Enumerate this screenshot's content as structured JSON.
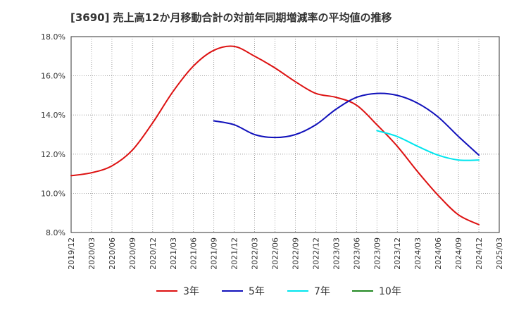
{
  "chart_data": {
    "type": "line",
    "title": "[3690]  売上高12か月移動合計の対前年同期増減率の平均値の推移",
    "xlabel": "",
    "ylabel": "",
    "ylim": [
      8.0,
      18.0
    ],
    "y_ticks": [
      "18.0%",
      "16.0%",
      "14.0%",
      "12.0%",
      "10.0%",
      "8.0%"
    ],
    "y_tick_values": [
      18,
      16,
      14,
      12,
      10,
      8
    ],
    "x_ticks": [
      "2019/12",
      "2020/03",
      "2020/06",
      "2020/09",
      "2020/12",
      "2021/03",
      "2021/06",
      "2021/09",
      "2021/12",
      "2022/03",
      "2022/06",
      "2022/09",
      "2022/12",
      "2023/03",
      "2023/06",
      "2023/09",
      "2023/12",
      "2024/03",
      "2024/06",
      "2024/09",
      "2024/12",
      "2025/03"
    ],
    "grid": true,
    "legend_position": "bottom",
    "series": [
      {
        "name": "3年",
        "color": "#dd1111",
        "x": [
          "2019/12",
          "2020/03",
          "2020/06",
          "2020/09",
          "2020/12",
          "2021/03",
          "2021/06",
          "2021/09",
          "2021/12",
          "2022/03",
          "2022/06",
          "2022/09",
          "2022/12",
          "2023/03",
          "2023/06",
          "2023/09",
          "2023/12",
          "2024/03",
          "2024/06",
          "2024/09",
          "2024/12"
        ],
        "values": [
          10.9,
          11.05,
          11.4,
          12.2,
          13.6,
          15.2,
          16.5,
          17.3,
          17.5,
          17.0,
          16.4,
          15.7,
          15.1,
          14.9,
          14.5,
          13.5,
          12.4,
          11.1,
          9.9,
          8.9,
          8.4
        ]
      },
      {
        "name": "5年",
        "color": "#1111bb",
        "x": [
          "2021/09",
          "2021/12",
          "2022/03",
          "2022/06",
          "2022/09",
          "2022/12",
          "2023/03",
          "2023/06",
          "2023/09",
          "2023/12",
          "2024/03",
          "2024/06",
          "2024/09",
          "2024/12"
        ],
        "values": [
          13.7,
          13.5,
          13.0,
          12.85,
          13.0,
          13.5,
          14.3,
          14.9,
          15.1,
          15.0,
          14.6,
          13.9,
          12.9,
          11.95
        ]
      },
      {
        "name": "7年",
        "color": "#00e5ee",
        "x": [
          "2023/09",
          "2023/12",
          "2024/03",
          "2024/06",
          "2024/09",
          "2024/12"
        ],
        "values": [
          13.2,
          12.9,
          12.4,
          11.95,
          11.7,
          11.7
        ]
      },
      {
        "name": "10年",
        "color": "#228822",
        "x": [],
        "values": []
      }
    ]
  }
}
